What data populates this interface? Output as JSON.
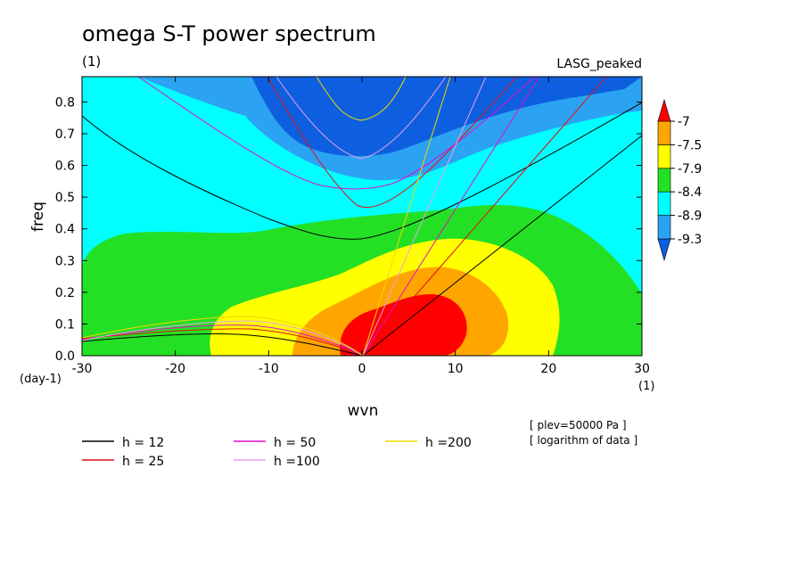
{
  "title": "omega S-T power spectrum",
  "subtitle": "(1)",
  "case_label": "LASG_peaked",
  "x_unit_label": "(1)",
  "y_unit_label": "(day-1)",
  "notes": [
    "[ plev=50000 Pa ]",
    "[ logarithm of data ]"
  ],
  "chart_data": {
    "type": "heatmap",
    "title": "omega S-T power spectrum",
    "xlabel": "wvn",
    "ylabel": "freq",
    "xlim": [
      -30,
      30
    ],
    "ylim": [
      0,
      0.88
    ],
    "x_ticks": [
      -30,
      -20,
      -10,
      0,
      10,
      20,
      30
    ],
    "x_tick_labels": [
      "-30",
      "-20",
      "-10",
      "0",
      "10",
      "20",
      "30"
    ],
    "y_ticks": [
      0.0,
      0.1,
      0.2,
      0.3,
      0.4,
      0.5,
      0.6,
      0.7,
      0.8
    ],
    "y_tick_labels": [
      "0.0",
      "0.1",
      "0.2",
      "0.3",
      "0.4",
      "0.5",
      "0.6",
      "0.7",
      "0.8"
    ],
    "colorbar": {
      "levels": [
        "-7",
        "-7.5",
        "-7.9",
        "-8.4",
        "-8.9",
        "-9.3"
      ],
      "colors": [
        "#0d5fe0",
        "#2ba3f2",
        "#00ffff",
        "#24e024",
        "#ffff00",
        "#ffa500",
        "#ff0000"
      ]
    },
    "series": [
      {
        "name": "h = 12",
        "color": "#000000",
        "equivalent_depth": 12
      },
      {
        "name": "h = 25",
        "color": "#e01010",
        "equivalent_depth": 25
      },
      {
        "name": "h = 50",
        "color": "#e010c8",
        "equivalent_depth": 50
      },
      {
        "name": "h =100",
        "color": "#e8a0e8",
        "equivalent_depth": 100
      },
      {
        "name": "h =200",
        "color": "#f0d800",
        "equivalent_depth": 200
      }
    ],
    "grid": false,
    "legend_position": "bottom"
  }
}
